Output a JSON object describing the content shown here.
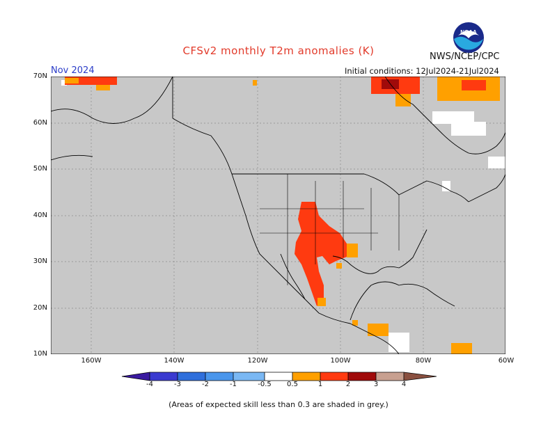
{
  "header": {
    "title": "CFSv2 monthly T2m anomalies (K)",
    "month": "Nov 2024",
    "initial_conditions": "Initial conditions: 12Jul2024-21Jul2024",
    "agency": "NWS/NCEP/CPC",
    "logo_text": "NOAA"
  },
  "map": {
    "lat_labels": [
      "70N",
      "60N",
      "50N",
      "40N",
      "30N",
      "20N",
      "10N"
    ],
    "lon_labels": [
      "160W",
      "140W",
      "120W",
      "100W",
      "80W",
      "60W"
    ],
    "background_color": "#c8c8c8",
    "land_outline_color": "#000000"
  },
  "colorbar": {
    "labels": [
      "-4",
      "-3",
      "-2",
      "-1",
      "-0.5",
      "0.5",
      "1",
      "2",
      "3",
      "4"
    ],
    "colors": [
      "#3a1aa0",
      "#3a3ad0",
      "#2f6fdc",
      "#4a96ec",
      "#7ab8f4",
      "#ffffff",
      "#ffa000",
      "#ff3a10",
      "#a00a0a",
      "#c8a090",
      "#8a5040"
    ]
  },
  "footnote": "(Areas of expected skill less than 0.3 are shaded in grey.)"
}
